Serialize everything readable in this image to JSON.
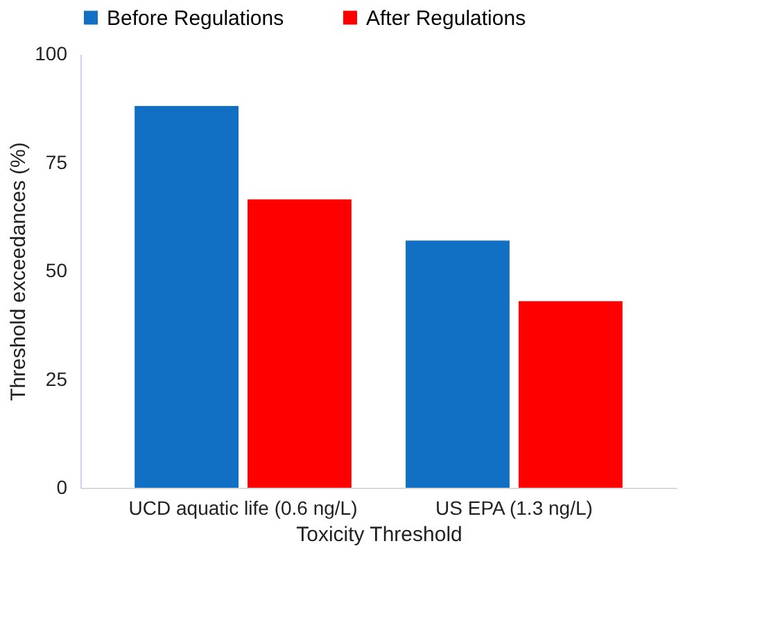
{
  "chart_data": {
    "type": "bar",
    "xlabel": "Toxicity Threshold",
    "ylabel": "Threshold exceedances (%)",
    "categories": [
      "UCD aquatic life (0.6 ng/L)",
      "US EPA (1.3 ng/L)"
    ],
    "series": [
      {
        "name": "Before Regulations",
        "color": "#1170c4",
        "values": [
          88,
          57
        ]
      },
      {
        "name": "After Regulations",
        "color": "#ff0000",
        "values": [
          66.5,
          43
        ]
      }
    ],
    "ylim": [
      0,
      100
    ],
    "yticks": [
      0,
      25,
      50,
      75,
      100
    ],
    "grid": false,
    "legend": "top"
  }
}
